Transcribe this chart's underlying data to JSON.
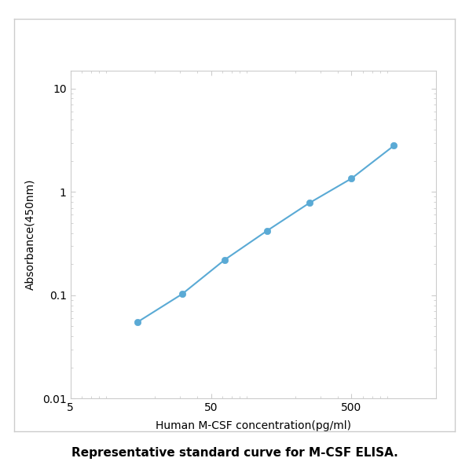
{
  "x_values": [
    15,
    31.25,
    62.5,
    125,
    250,
    500,
    1000
  ],
  "y_values": [
    0.055,
    0.103,
    0.22,
    0.42,
    0.78,
    1.35,
    2.8
  ],
  "line_color": "#5aaad5",
  "marker_color": "#5aaad5",
  "marker_size": 6,
  "line_width": 1.5,
  "xlabel": "Human M-CSF concentration(pg/ml)",
  "ylabel": "Absorbance(450nm)",
  "caption": "Representative standard curve for M-CSF ELISA.",
  "xlim": [
    5,
    2000
  ],
  "ylim": [
    0.01,
    15
  ],
  "x_ticks": [
    5,
    50,
    500
  ],
  "x_tick_labels": [
    "5",
    "50",
    "500"
  ],
  "y_ticks": [
    0.01,
    0.1,
    1,
    10
  ],
  "y_tick_labels": [
    "0.01",
    "0.1",
    "1",
    "10"
  ],
  "background_color": "#ffffff",
  "plot_bg_color": "#ffffff",
  "axis_label_fontsize": 10,
  "tick_fontsize": 10,
  "caption_fontsize": 11,
  "outer_border_color": "#cccccc",
  "spine_color": "#cccccc"
}
